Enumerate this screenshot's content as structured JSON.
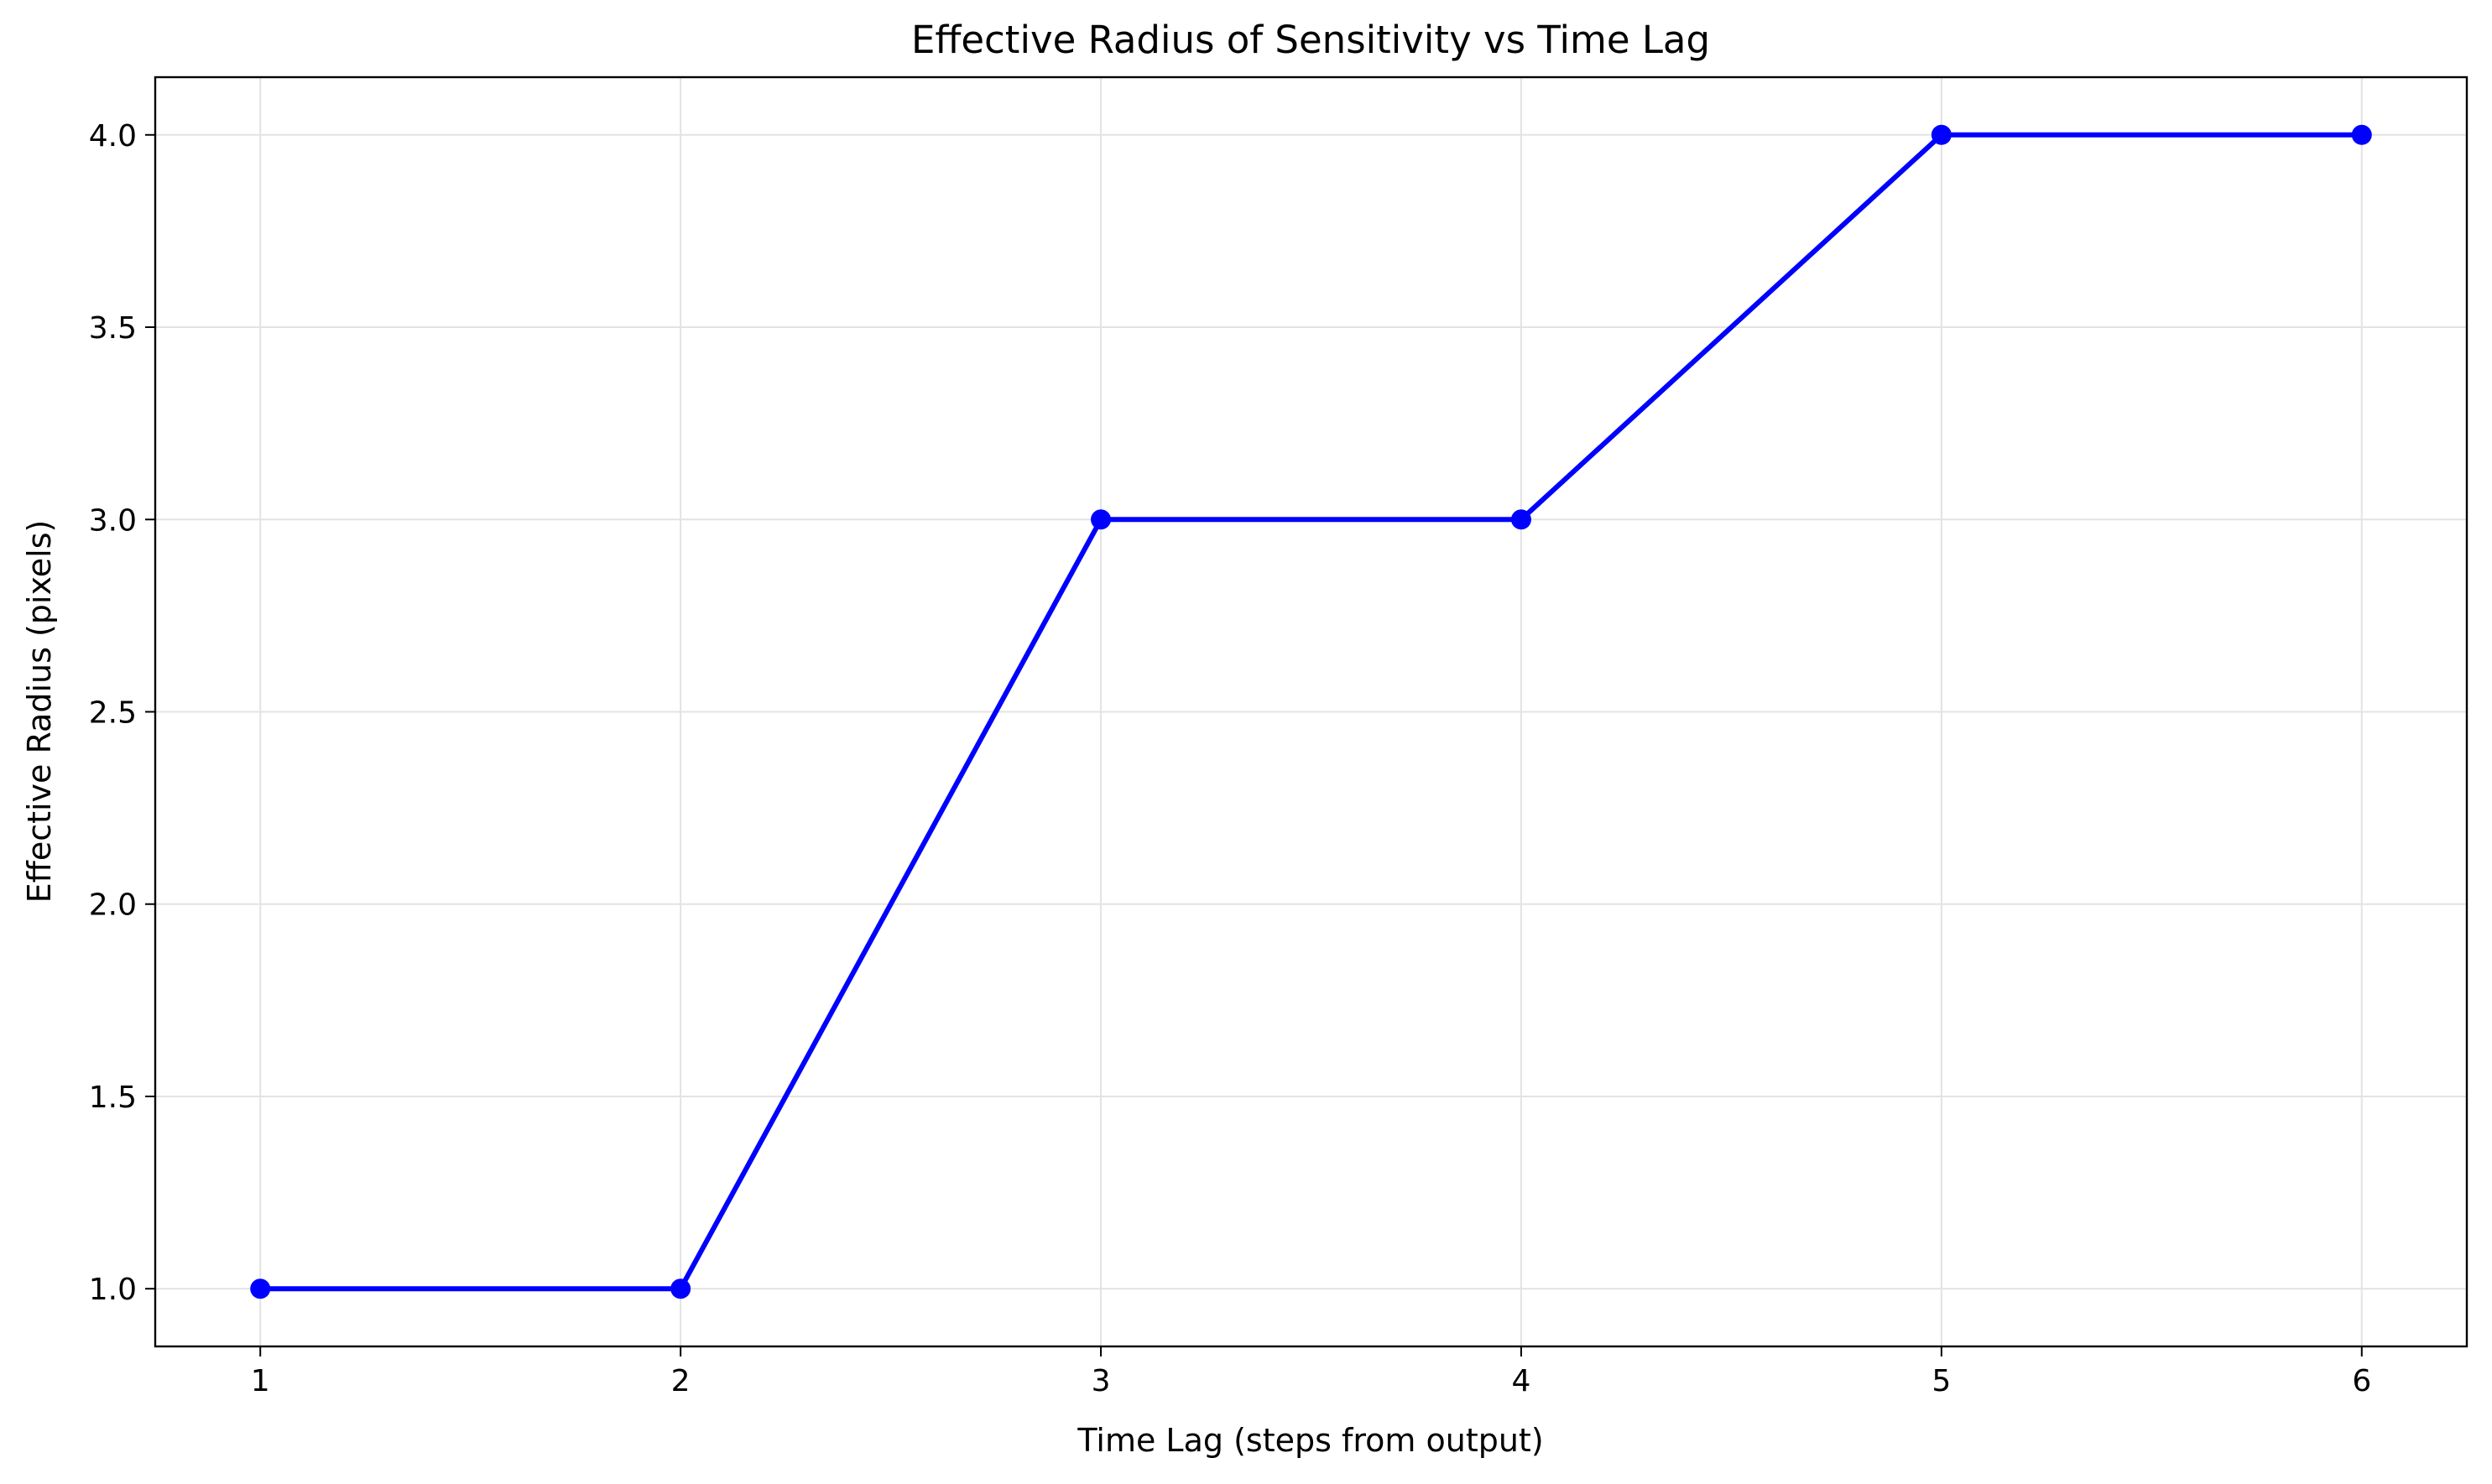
{
  "chart_data": {
    "type": "line",
    "title": "Effective Radius of Sensitivity vs Time Lag",
    "xlabel": "Time Lag (steps from output)",
    "ylabel": "Effective Radius (pixels)",
    "xlim": [
      0.75,
      6.25
    ],
    "ylim": [
      0.85,
      4.15
    ],
    "xticks": [
      1,
      2,
      3,
      4,
      5,
      6
    ],
    "yticks": [
      1.0,
      1.5,
      2.0,
      2.5,
      3.0,
      3.5,
      4.0
    ],
    "grid": true,
    "series": [
      {
        "color": "#0000ff",
        "marker": "circle",
        "x": [
          1,
          2,
          3,
          4,
          5,
          6
        ],
        "y": [
          1.0,
          1.0,
          3.0,
          3.0,
          4.0,
          4.0
        ]
      }
    ]
  }
}
